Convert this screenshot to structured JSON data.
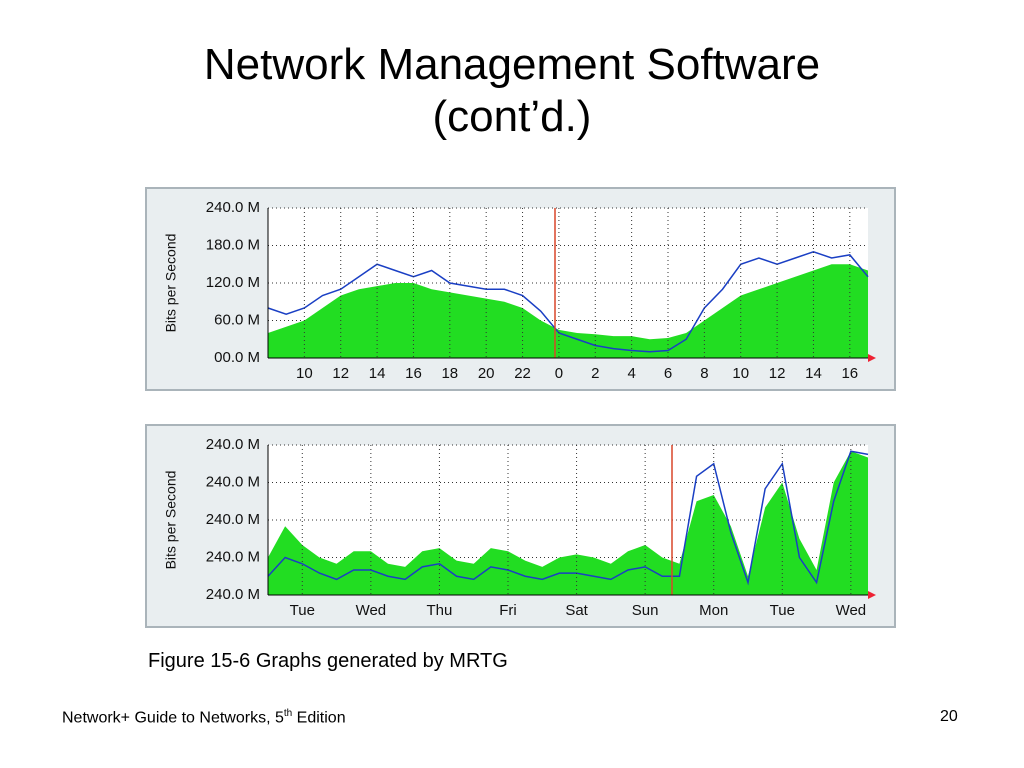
{
  "slide": {
    "title": [
      "Network Management Software",
      "(cont’d.)"
    ],
    "caption": "Figure 15-6 Graphs generated by MRTG",
    "footer": {
      "text": "Network+ Guide to Networks, 5",
      "superscript": "th",
      "after": " Edition"
    },
    "page_number": 20
  },
  "chart_data": [
    {
      "type": "area",
      "ylabel": "Bits per Second",
      "grid": true,
      "categories": [
        null,
        null,
        "10",
        null,
        "12",
        null,
        "14",
        null,
        "16",
        null,
        "18",
        null,
        "20",
        null,
        "22",
        null,
        "0",
        null,
        "2",
        null,
        "4",
        null,
        "6",
        null,
        "8",
        null,
        "10",
        null,
        "12",
        null,
        "14",
        null,
        "16",
        null
      ],
      "ylim": [
        0,
        240
      ],
      "yticks": [
        {
          "value": 0,
          "label": "00.0 M"
        },
        {
          "value": 60,
          "label": "60.0 M"
        },
        {
          "value": 120,
          "label": "120.0 M"
        },
        {
          "value": 180,
          "label": "180.0 M"
        },
        {
          "value": 240,
          "label": "240.0 M"
        }
      ],
      "series": [
        {
          "style": "area",
          "color": "#22dd22",
          "values": [
            40,
            50,
            60,
            80,
            100,
            110,
            115,
            120,
            120,
            110,
            105,
            100,
            95,
            90,
            80,
            60,
            45,
            40,
            38,
            35,
            35,
            30,
            32,
            40,
            60,
            80,
            100,
            110,
            120,
            130,
            140,
            150,
            150,
            140
          ]
        },
        {
          "style": "line",
          "color": "#1a3fc4",
          "values": [
            80,
            70,
            80,
            100,
            110,
            130,
            150,
            140,
            130,
            140,
            120,
            115,
            110,
            110,
            100,
            75,
            40,
            30,
            20,
            15,
            12,
            10,
            12,
            30,
            80,
            110,
            150,
            160,
            150,
            160,
            170,
            160,
            165,
            130
          ]
        }
      ]
    },
    {
      "type": "area",
      "ylabel": "Bits per Second",
      "grid": true,
      "categories": [
        null,
        null,
        "Tue",
        null,
        null,
        null,
        "Wed",
        null,
        null,
        null,
        "Thu",
        null,
        null,
        null,
        "Fri",
        null,
        null,
        null,
        "Sat",
        null,
        null,
        null,
        "Sun",
        null,
        null,
        null,
        "Mon",
        null,
        null,
        null,
        "Tue",
        null,
        null,
        null,
        "Wed",
        null
      ],
      "ylim": [
        0,
        240
      ],
      "ytick_labels": [
        "240.0 M",
        "240.0 M",
        "240.0 M",
        "240.0 M",
        "240.0 M"
      ],
      "series": [
        {
          "style": "area",
          "color": "#22dd22",
          "values": [
            60,
            110,
            80,
            60,
            50,
            70,
            70,
            50,
            45,
            70,
            75,
            55,
            50,
            75,
            70,
            55,
            45,
            60,
            65,
            60,
            50,
            70,
            80,
            60,
            50,
            150,
            160,
            110,
            30,
            140,
            180,
            90,
            40,
            180,
            230,
            220
          ]
        },
        {
          "style": "line",
          "color": "#1a3fc4",
          "values": [
            30,
            60,
            50,
            35,
            25,
            40,
            40,
            30,
            25,
            45,
            50,
            30,
            25,
            45,
            40,
            30,
            25,
            35,
            35,
            30,
            25,
            40,
            45,
            30,
            30,
            190,
            210,
            100,
            20,
            170,
            210,
            60,
            20,
            150,
            230,
            225
          ]
        }
      ]
    }
  ]
}
